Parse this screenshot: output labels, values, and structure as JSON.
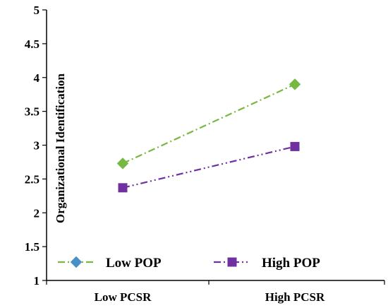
{
  "chart_data": {
    "type": "line",
    "categories": [
      "Low PCSR",
      "High PCSR"
    ],
    "ylabel": "Organizational Identification",
    "ylim": [
      1,
      5
    ],
    "yticks": [
      "1",
      "1.5",
      "2",
      "2.5",
      "3",
      "3.5",
      "4",
      "4.5",
      "5"
    ],
    "series": [
      {
        "name": "Low POP",
        "values": [
          2.73,
          3.9
        ],
        "color": "#77B843",
        "marker": "diamond",
        "dash": "dash-dot"
      },
      {
        "name": "High POP",
        "values": [
          2.37,
          2.98
        ],
        "color": "#7030A0",
        "marker": "square",
        "dash": "dash-dot-dot"
      }
    ],
    "legend_position": "bottom-inside",
    "grid": false
  }
}
